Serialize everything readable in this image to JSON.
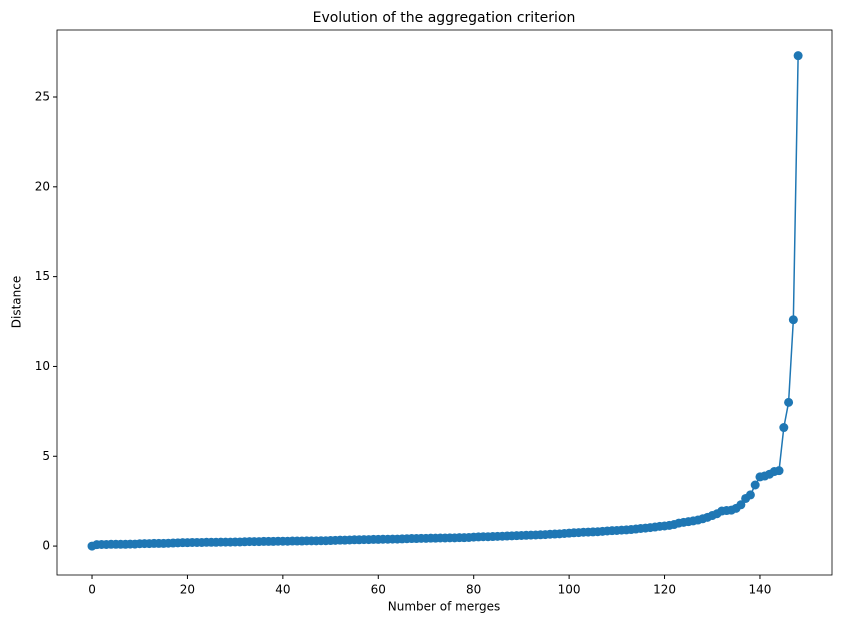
{
  "chart_data": {
    "type": "line",
    "title": "Evolution of the aggregation criterion",
    "x_label": "Number of merges",
    "y_label": "Distance",
    "x": [
      0,
      1,
      2,
      3,
      4,
      5,
      6,
      7,
      8,
      9,
      10,
      11,
      12,
      13,
      14,
      15,
      16,
      17,
      18,
      19,
      20,
      21,
      22,
      23,
      24,
      25,
      26,
      27,
      28,
      29,
      30,
      31,
      32,
      33,
      34,
      35,
      36,
      37,
      38,
      39,
      40,
      41,
      42,
      43,
      44,
      45,
      46,
      47,
      48,
      49,
      50,
      51,
      52,
      53,
      54,
      55,
      56,
      57,
      58,
      59,
      60,
      61,
      62,
      63,
      64,
      65,
      66,
      67,
      68,
      69,
      70,
      71,
      72,
      73,
      74,
      75,
      76,
      77,
      78,
      79,
      80,
      81,
      82,
      83,
      84,
      85,
      86,
      87,
      88,
      89,
      90,
      91,
      92,
      93,
      94,
      95,
      96,
      97,
      98,
      99,
      100,
      101,
      102,
      103,
      104,
      105,
      106,
      107,
      108,
      109,
      110,
      111,
      112,
      113,
      114,
      115,
      116,
      117,
      118,
      119,
      120,
      121,
      122,
      123,
      124,
      125,
      126,
      127,
      128,
      129,
      130,
      131,
      132,
      133,
      134,
      135,
      136,
      137,
      138,
      139,
      140,
      141,
      142,
      143,
      144,
      145,
      146,
      147,
      148
    ],
    "values": [
      0.0,
      0.08,
      0.09,
      0.09,
      0.1,
      0.1,
      0.1,
      0.1,
      0.11,
      0.11,
      0.13,
      0.14,
      0.14,
      0.15,
      0.15,
      0.15,
      0.16,
      0.17,
      0.18,
      0.19,
      0.19,
      0.2,
      0.2,
      0.2,
      0.21,
      0.21,
      0.21,
      0.22,
      0.22,
      0.22,
      0.23,
      0.23,
      0.24,
      0.25,
      0.25,
      0.25,
      0.26,
      0.26,
      0.26,
      0.27,
      0.27,
      0.27,
      0.28,
      0.28,
      0.28,
      0.29,
      0.29,
      0.29,
      0.3,
      0.3,
      0.31,
      0.32,
      0.33,
      0.33,
      0.34,
      0.35,
      0.35,
      0.36,
      0.36,
      0.37,
      0.37,
      0.38,
      0.38,
      0.39,
      0.39,
      0.4,
      0.41,
      0.42,
      0.42,
      0.43,
      0.43,
      0.44,
      0.44,
      0.45,
      0.45,
      0.46,
      0.46,
      0.47,
      0.47,
      0.48,
      0.5,
      0.51,
      0.52,
      0.52,
      0.53,
      0.54,
      0.55,
      0.56,
      0.57,
      0.58,
      0.59,
      0.6,
      0.61,
      0.62,
      0.63,
      0.64,
      0.66,
      0.67,
      0.68,
      0.7,
      0.72,
      0.74,
      0.75,
      0.77,
      0.78,
      0.79,
      0.8,
      0.82,
      0.84,
      0.86,
      0.87,
      0.89,
      0.9,
      0.92,
      0.95,
      0.98,
      1.0,
      1.03,
      1.06,
      1.1,
      1.12,
      1.15,
      1.2,
      1.28,
      1.32,
      1.36,
      1.4,
      1.45,
      1.52,
      1.6,
      1.7,
      1.8,
      1.95,
      1.98,
      2.0,
      2.1,
      2.3,
      2.65,
      2.85,
      3.4,
      3.85,
      3.9,
      4.0,
      4.15,
      4.2,
      6.6,
      8.0,
      12.6,
      27.3
    ],
    "color": "#1f77b4",
    "markers": true,
    "xlim": [
      -7.34,
      155.1
    ],
    "xticks": [
      0,
      20,
      40,
      60,
      80,
      100,
      120,
      140
    ],
    "ylim": [
      -1.61,
      28.73
    ],
    "yticks": [
      0,
      5,
      10,
      15,
      20,
      25
    ]
  }
}
